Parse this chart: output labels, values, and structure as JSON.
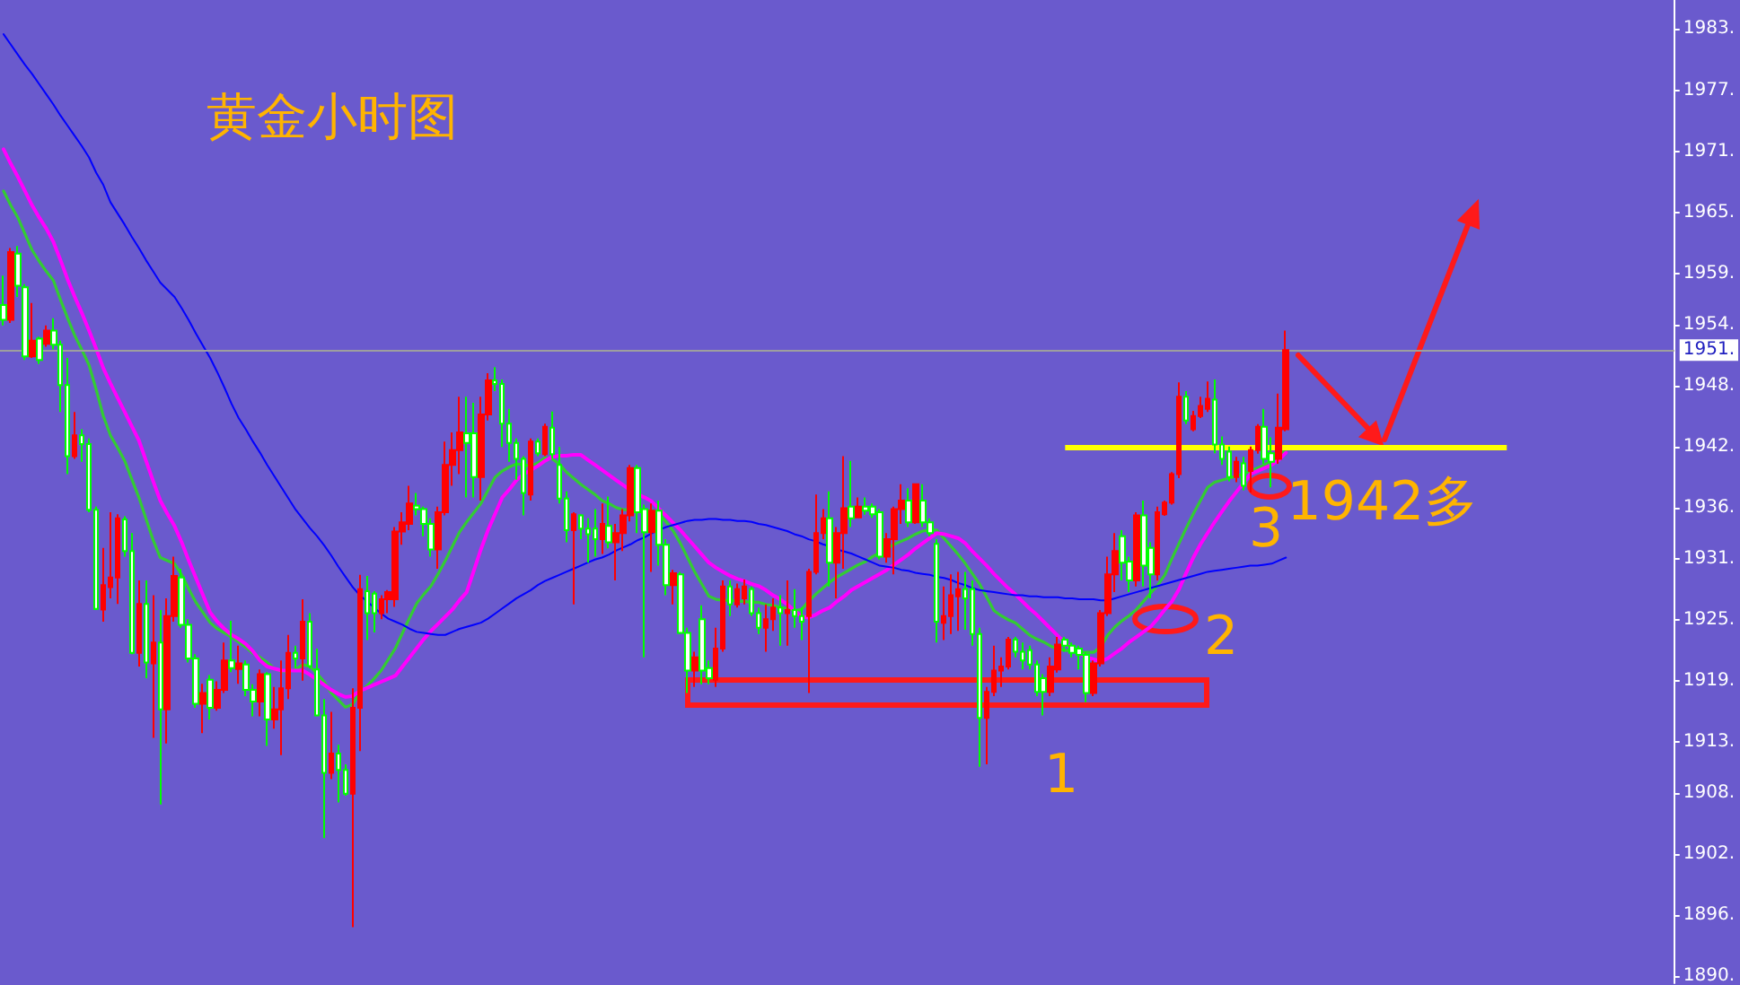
{
  "chart_data": {
    "type": "candlestick",
    "title": "黄金小时图",
    "categories": [
      null,
      null,
      null,
      null,
      null,
      null,
      null,
      null,
      null,
      null,
      null,
      null,
      null,
      null,
      null,
      null,
      null,
      null,
      null,
      null,
      null,
      null,
      null,
      null,
      null,
      null,
      null,
      null,
      null,
      null,
      null,
      null,
      null,
      null,
      null,
      null,
      null,
      null,
      null,
      null,
      null,
      null,
      null,
      null,
      null,
      null,
      null,
      null,
      null,
      null,
      null,
      null,
      null,
      null,
      null,
      null,
      null,
      null,
      null,
      null,
      null,
      null,
      null,
      null,
      null,
      null,
      null,
      null,
      null,
      null,
      null,
      null,
      null,
      null,
      null,
      null,
      null,
      null,
      null,
      null,
      null,
      null,
      null,
      null,
      null,
      null,
      null,
      null,
      null,
      null,
      null,
      null,
      null,
      null,
      null,
      null,
      null,
      null,
      null,
      null,
      null,
      null,
      null,
      null,
      null,
      null,
      null,
      null,
      null,
      null,
      null,
      null,
      null,
      null,
      null,
      null,
      null,
      null,
      null,
      null,
      null,
      null,
      null,
      null,
      null,
      null,
      null,
      null,
      null,
      null,
      null,
      null,
      null,
      null,
      null,
      null,
      null,
      null,
      null,
      null,
      null,
      null,
      null,
      null,
      null,
      null,
      null,
      null,
      null,
      null,
      null,
      null,
      null,
      null,
      null,
      null,
      null,
      null,
      null,
      null,
      null,
      null,
      null,
      null,
      null,
      null,
      null,
      null,
      null,
      null,
      null,
      null,
      null,
      null,
      null,
      null,
      null,
      null,
      null,
      null,
      null,
      null,
      null,
      null,
      null,
      null,
      null,
      null,
      null,
      null,
      null,
      null,
      null,
      null,
      null,
      null,
      null,
      null,
      null,
      null,
      null,
      null,
      null,
      null,
      null,
      null,
      null,
      null,
      null,
      null,
      null,
      null,
      null,
      null,
      null,
      null,
      null,
      null,
      null,
      null,
      null,
      null,
      null,
      null,
      null,
      null,
      null,
      null,
      null,
      null,
      null,
      null,
      null,
      null,
      null
    ],
    "ohlc": [
      [
        1955.9,
        1958.8,
        1953.9,
        1954.45
      ],
      [
        1954.45,
        1961.5,
        1954.15,
        1961.1
      ],
      [
        1960.95,
        1961.7,
        1956.7,
        1957.8
      ],
      [
        1957.65,
        1957.95,
        1950.5,
        1950.85
      ],
      [
        1950.85,
        1956.1,
        1950.7,
        1952.4
      ],
      [
        1952.6,
        1952.8,
        1950.1,
        1950.5
      ],
      [
        1952.1,
        1953.9,
        1951.8,
        1953.4
      ],
      [
        1953.4,
        1954.6,
        1951.55,
        1952.0
      ],
      [
        1952.0,
        1952.4,
        1945.4,
        1948.05
      ],
      [
        1948.05,
        1950.7,
        1939.3,
        1941.05
      ],
      [
        1941.05,
        1945.4,
        1940.8,
        1943.1
      ],
      [
        1943.1,
        1943.7,
        1940.5,
        1942.25
      ],
      [
        1942.25,
        1942.8,
        1935.55,
        1935.8
      ],
      [
        1935.8,
        1936.1,
        1925.95,
        1926.05
      ],
      [
        1926.0,
        1932.05,
        1924.8,
        1928.4
      ],
      [
        1928.2,
        1935.55,
        1927.1,
        1929.15
      ],
      [
        1929.15,
        1935.35,
        1926.55,
        1934.95
      ],
      [
        1934.85,
        1935.15,
        1931.2,
        1931.75
      ],
      [
        1931.75,
        1933.5,
        1921.6,
        1921.75
      ],
      [
        1921.75,
        1928.85,
        1920.4,
        1926.55
      ],
      [
        1926.55,
        1928.85,
        1919.25,
        1920.8
      ],
      [
        1920.7,
        1927.4,
        1913.4,
        1922.75
      ],
      [
        1922.75,
        1925.95,
        1906.85,
        1916.2
      ],
      [
        1916.2,
        1927.1,
        1912.85,
        1925.35
      ],
      [
        1925.35,
        1931.2,
        1924.8,
        1929.3
      ],
      [
        1929.15,
        1930.0,
        1924.2,
        1924.5
      ],
      [
        1924.5,
        1925.05,
        1920.8,
        1921.2
      ],
      [
        1921.2,
        1921.6,
        1916.35,
        1916.75
      ],
      [
        1916.75,
        1918.7,
        1913.85,
        1917.8
      ],
      [
        1919.1,
        1919.55,
        1915.2,
        1916.35
      ],
      [
        1916.35,
        1918.95,
        1916.05,
        1918.1
      ],
      [
        1918.1,
        1922.75,
        1917.8,
        1921.0
      ],
      [
        1921.0,
        1924.9,
        1919.85,
        1920.25
      ],
      [
        1920.15,
        1922.45,
        1918.7,
        1920.7
      ],
      [
        1920.6,
        1921.0,
        1917.5,
        1918.1
      ],
      [
        1918.1,
        1918.65,
        1915.5,
        1916.95
      ],
      [
        1916.95,
        1920.1,
        1915.5,
        1919.65
      ],
      [
        1919.65,
        1919.85,
        1912.6,
        1915.2
      ],
      [
        1915.2,
        1918.4,
        1914.3,
        1916.2
      ],
      [
        1916.2,
        1921.0,
        1911.7,
        1918.25
      ],
      [
        1918.25,
        1923.5,
        1917.2,
        1921.75
      ],
      [
        1921.75,
        1922.45,
        1920.25,
        1921.2
      ],
      [
        1921.2,
        1927.0,
        1919.0,
        1924.8
      ],
      [
        1924.8,
        1925.65,
        1920.2,
        1920.45
      ],
      [
        1920.1,
        1922.15,
        1915.5,
        1915.6
      ],
      [
        1915.6,
        1917.2,
        1903.55,
        1909.95
      ],
      [
        1909.95,
        1915.95,
        1909.35,
        1911.85
      ],
      [
        1911.85,
        1912.7,
        1907.05,
        1910.25
      ],
      [
        1910.25,
        1910.8,
        1907.7,
        1907.9
      ],
      [
        1907.9,
        1918.25,
        1894.8,
        1916.35
      ],
      [
        1916.35,
        1929.4,
        1912.1,
        1928.0
      ],
      [
        1927.8,
        1929.3,
        1923.0,
        1925.65
      ],
      [
        1927.55,
        1927.8,
        1923.75,
        1925.65
      ],
      [
        1925.65,
        1927.4,
        1925.05,
        1927.0
      ],
      [
        1927.0,
        1927.9,
        1925.65,
        1927.7
      ],
      [
        1927.0,
        1934.1,
        1926.25,
        1933.65
      ],
      [
        1933.65,
        1935.55,
        1932.35,
        1934.55
      ],
      [
        1934.4,
        1938.15,
        1933.8,
        1936.4
      ],
      [
        1936.2,
        1937.45,
        1935.25,
        1935.85
      ],
      [
        1935.85,
        1936.1,
        1933.2,
        1934.4
      ],
      [
        1934.4,
        1934.95,
        1931.2,
        1931.9
      ],
      [
        1931.9,
        1936.1,
        1930.0,
        1935.55
      ],
      [
        1935.55,
        1942.5,
        1935.25,
        1940.2
      ],
      [
        1940.2,
        1943.4,
        1938.15,
        1941.65
      ],
      [
        1941.65,
        1946.9,
        1939.3,
        1943.4
      ],
      [
        1943.3,
        1946.9,
        1937.0,
        1942.35
      ],
      [
        1943.3,
        1946.3,
        1937.0,
        1939.0
      ],
      [
        1939.0,
        1946.9,
        1936.7,
        1945.15
      ],
      [
        1945.15,
        1949.2,
        1944.55,
        1948.5
      ],
      [
        1948.5,
        1949.8,
        1947.45,
        1948.15
      ],
      [
        1948.15,
        1948.6,
        1941.95,
        1944.25
      ],
      [
        1944.25,
        1945.7,
        1940.5,
        1942.35
      ],
      [
        1942.35,
        1942.8,
        1938.75,
        1940.8
      ],
      [
        1940.8,
        1941.05,
        1935.25,
        1937.45
      ],
      [
        1937.3,
        1942.8,
        1936.7,
        1942.5
      ],
      [
        1942.5,
        1942.8,
        1941.05,
        1941.35
      ],
      [
        1941.25,
        1944.25,
        1941.05,
        1943.95
      ],
      [
        1943.85,
        1945.45,
        1940.8,
        1941.25
      ],
      [
        1940.2,
        1941.95,
        1936.4,
        1936.9
      ],
      [
        1936.9,
        1937.6,
        1932.6,
        1933.8
      ],
      [
        1933.8,
        1935.55,
        1926.5,
        1935.35
      ],
      [
        1935.25,
        1935.35,
        1932.9,
        1933.95
      ],
      [
        1933.95,
        1934.95,
        1930.6,
        1933.4
      ],
      [
        1933.95,
        1935.85,
        1931.2,
        1932.9
      ],
      [
        1932.9,
        1936.4,
        1931.45,
        1934.4
      ],
      [
        1934.2,
        1937.1,
        1932.0,
        1932.6
      ],
      [
        1932.6,
        1934.4,
        1928.85,
        1933.5
      ],
      [
        1933.5,
        1935.85,
        1931.75,
        1935.25
      ],
      [
        1935.25,
        1940.2,
        1934.65,
        1939.9
      ],
      [
        1939.9,
        1940.2,
        1933.5,
        1935.55
      ],
      [
        1935.85,
        1936.3,
        1921.3,
        1933.6
      ],
      [
        1933.6,
        1936.4,
        1929.7,
        1935.7
      ],
      [
        1935.7,
        1936.7,
        1930.3,
        1932.35
      ],
      [
        1932.35,
        1932.9,
        1927.4,
        1928.4
      ],
      [
        1928.4,
        1929.9,
        1926.5,
        1929.55
      ],
      [
        1929.45,
        1929.7,
        1923.6,
        1923.7
      ],
      [
        1923.7,
        1924.2,
        1917.8,
        1920.0
      ],
      [
        1920.0,
        1921.85,
        1918.4,
        1921.3
      ],
      [
        1925.05,
        1926.4,
        1918.65,
        1920.0
      ],
      [
        1920.25,
        1921.0,
        1918.65,
        1919.25
      ],
      [
        1919.1,
        1924.2,
        1918.4,
        1922.15
      ],
      [
        1922.15,
        1928.85,
        1921.85,
        1928.25
      ],
      [
        1928.25,
        1928.85,
        1925.35,
        1926.5
      ],
      [
        1926.5,
        1928.55,
        1926.2,
        1928.0
      ],
      [
        1927.1,
        1928.95,
        1926.5,
        1928.25
      ],
      [
        1928.0,
        1928.25,
        1925.35,
        1925.65
      ],
      [
        1925.65,
        1926.2,
        1923.6,
        1924.2
      ],
      [
        1924.2,
        1926.5,
        1921.85,
        1925.05
      ],
      [
        1925.05,
        1927.1,
        1923.9,
        1926.2
      ],
      [
        1926.2,
        1927.4,
        1922.45,
        1925.65
      ],
      [
        1925.65,
        1928.85,
        1922.45,
        1925.95
      ],
      [
        1925.95,
        1928.0,
        1924.2,
        1925.35
      ],
      [
        1925.35,
        1926.2,
        1923.0,
        1924.8
      ],
      [
        1925.35,
        1930.0,
        1917.8,
        1929.7
      ],
      [
        1929.7,
        1937.3,
        1929.45,
        1933.5
      ],
      [
        1933.5,
        1935.85,
        1932.9,
        1934.95
      ],
      [
        1934.95,
        1937.6,
        1928.25,
        1930.6
      ],
      [
        1930.6,
        1934.1,
        1927.1,
        1933.5
      ],
      [
        1933.5,
        1941.05,
        1930.0,
        1935.95
      ],
      [
        1936.1,
        1940.6,
        1934.1,
        1934.95
      ],
      [
        1935.05,
        1937.0,
        1935.0,
        1936.1
      ],
      [
        1936.1,
        1937.0,
        1935.3,
        1935.7
      ],
      [
        1936.1,
        1936.4,
        1935.0,
        1935.35
      ],
      [
        1935.55,
        1935.85,
        1930.9,
        1931.2
      ],
      [
        1931.2,
        1933.5,
        1930.6,
        1932.9
      ],
      [
        1932.9,
        1936.1,
        1929.45,
        1935.85
      ],
      [
        1935.85,
        1938.3,
        1934.4,
        1936.7
      ],
      [
        1936.7,
        1937.9,
        1934.1,
        1934.55
      ],
      [
        1934.55,
        1938.3,
        1934.4,
        1938.3
      ],
      [
        1936.7,
        1938.3,
        1934.1,
        1934.55
      ],
      [
        1934.55,
        1934.95,
        1933.2,
        1933.5
      ],
      [
        1932.45,
        1932.9,
        1922.75,
        1924.8
      ],
      [
        1924.7,
        1928.25,
        1923.0,
        1925.35
      ],
      [
        1925.35,
        1929.45,
        1923.6,
        1927.4
      ],
      [
        1927.3,
        1929.7,
        1923.9,
        1928.0
      ],
      [
        1928.0,
        1929.7,
        1924.0,
        1927.1
      ],
      [
        1928.0,
        1928.85,
        1922.45,
        1923.6
      ],
      [
        1923.6,
        1924.2,
        1910.55,
        1915.35
      ],
      [
        1915.35,
        1918.4,
        1910.8,
        1917.9
      ],
      [
        1917.9,
        1922.45,
        1917.5,
        1920.0
      ],
      [
        1920.0,
        1921.3,
        1918.4,
        1920.4
      ],
      [
        1920.4,
        1923.3,
        1920.1,
        1923.05
      ],
      [
        1923.05,
        1923.3,
        1921.3,
        1921.85
      ],
      [
        1921.85,
        1922.75,
        1920.1,
        1921.0
      ],
      [
        1922.0,
        1922.45,
        1920.1,
        1920.6
      ],
      [
        1920.6,
        1921.0,
        1917.5,
        1917.9
      ],
      [
        1919.25,
        1919.65,
        1915.6,
        1917.9
      ],
      [
        1917.9,
        1921.3,
        1917.5,
        1920.4
      ],
      [
        1920.1,
        1923.3,
        1919.8,
        1922.55
      ],
      [
        1923.05,
        1923.3,
        1921.85,
        1922.45
      ],
      [
        1922.45,
        1922.75,
        1921.3,
        1921.75
      ],
      [
        1922.15,
        1922.45,
        1920.1,
        1921.55
      ],
      [
        1921.55,
        1921.85,
        1916.9,
        1917.8
      ],
      [
        1917.8,
        1921.0,
        1917.5,
        1920.7
      ],
      [
        1920.7,
        1925.95,
        1920.4,
        1925.65
      ],
      [
        1925.65,
        1931.2,
        1925.35,
        1929.45
      ],
      [
        1929.45,
        1933.5,
        1927.7,
        1931.75
      ],
      [
        1933.2,
        1933.8,
        1928.85,
        1930.6
      ],
      [
        1930.7,
        1931.2,
        1927.7,
        1928.85
      ],
      [
        1928.85,
        1935.55,
        1928.25,
        1935.25
      ],
      [
        1935.25,
        1936.7,
        1928.25,
        1930.3
      ],
      [
        1932.05,
        1932.6,
        1927.1,
        1929.45
      ],
      [
        1929.45,
        1936.1,
        1928.85,
        1935.55
      ],
      [
        1935.35,
        1936.7,
        1935.2,
        1936.5
      ],
      [
        1936.5,
        1939.5,
        1936.3,
        1939.3
      ],
      [
        1939.3,
        1948.3,
        1938.9,
        1946.9
      ],
      [
        1946.9,
        1947.45,
        1944.2,
        1944.55
      ],
      [
        1943.7,
        1945.5,
        1943.5,
        1945.0
      ],
      [
        1945.0,
        1946.9,
        1944.8,
        1946.0
      ],
      [
        1945.7,
        1948.4,
        1945.4,
        1946.7
      ],
      [
        1946.6,
        1948.6,
        1941.35,
        1942.2
      ],
      [
        1942.2,
        1943.0,
        1940.2,
        1940.8
      ],
      [
        1941.5,
        1942.0,
        1938.6,
        1939.0
      ],
      [
        1939.0,
        1941.0,
        1938.5,
        1940.5
      ],
      [
        1940.35,
        1941.0,
        1937.7,
        1938.15
      ],
      [
        1939.6,
        1942.0,
        1937.5,
        1941.65
      ],
      [
        1941.65,
        1944.2,
        1941.3,
        1943.95
      ],
      [
        1943.95,
        1945.7,
        1940.3,
        1940.8
      ],
      [
        1941.35,
        1942.9,
        1938.0,
        1940.5
      ],
      [
        1940.8,
        1947.2,
        1940.3,
        1943.85
      ],
      [
        1943.7,
        1953.4,
        1943.5,
        1951.48
      ],
      null,
      null,
      null,
      null,
      null,
      null,
      null,
      null,
      null,
      null,
      null,
      null,
      null,
      null,
      null,
      null,
      null,
      null,
      null,
      null,
      null,
      null,
      null,
      null,
      null,
      null,
      null,
      null,
      null,
      null,
      null,
      null,
      null,
      null,
      null,
      null,
      null,
      null,
      null,
      null,
      null,
      null,
      null,
      null,
      null,
      null,
      null,
      null,
      null,
      null,
      null,
      null,
      null,
      null
    ],
    "colors": [
      "#00ff00",
      "#ff0000",
      "#00ff00",
      "#00ff00",
      "#ff0000",
      "#00ff00",
      "#ff0000",
      "#00ff00",
      "#00ff00",
      "#00ff00",
      "#ff0000",
      "#00ff00",
      "#00ff00",
      "#00ff00",
      "#ff0000",
      "#ff0000",
      "#ff0000",
      "#00ff00",
      "#00ff00",
      "#ff0000",
      "#00ff00",
      "#ff0000",
      "#00ff00",
      "#ff0000",
      "#ff0000",
      "#00ff00",
      "#00ff00",
      "#00ff00",
      "#ff0000",
      "#00ff00",
      "#ff0000",
      "#ff0000",
      "#00ff00",
      "#ff0000",
      "#00ff00",
      "#00ff00",
      "#ff0000",
      "#00ff00",
      "#ff0000",
      "#ff0000",
      "#ff0000",
      "#00ff00",
      "#ff0000",
      "#00ff00",
      "#00ff00",
      "#00ff00",
      "#ff0000",
      "#00ff00",
      "#00ff00",
      "#ff0000",
      "#ff0000",
      "#00ff00",
      "#00ff00",
      "#ff0000",
      "#ff0000",
      "#ff0000",
      "#ff0000",
      "#ff0000",
      "#00ff00",
      "#00ff00",
      "#00ff00",
      "#ff0000",
      "#ff0000",
      "#ff0000",
      "#ff0000",
      "#00ff00",
      "#00ff00",
      "#ff0000",
      "#ff0000",
      "#00ff00",
      "#00ff00",
      "#00ff00",
      "#00ff00",
      "#00ff00",
      "#ff0000",
      "#00ff00",
      "#ff0000",
      "#00ff00",
      "#00ff00",
      "#00ff00",
      "#ff0000",
      "#00ff00",
      "#00ff00",
      "#00ff00",
      "#ff0000",
      "#00ff00",
      "#ff0000",
      "#ff0000",
      "#ff0000",
      "#00ff00",
      "#00ff00",
      "#ff0000",
      "#00ff00",
      "#00ff00",
      "#ff0000",
      "#00ff00",
      "#00ff00",
      "#ff0000",
      "#00ff00",
      "#00ff00",
      "#ff0000",
      "#ff0000",
      "#00ff00",
      "#ff0000",
      "#ff0000",
      "#00ff00",
      "#00ff00",
      "#ff0000",
      "#ff0000",
      "#00ff00",
      "#ff0000",
      "#00ff00",
      "#00ff00",
      "#ff0000",
      "#ff0000",
      "#ff0000",
      "#00ff00",
      "#ff0000",
      "#ff0000",
      "#00ff00",
      "#ff0000",
      "#00ff00",
      "#00ff00",
      "#00ff00",
      "#ff0000",
      "#ff0000",
      "#ff0000",
      "#00ff00",
      "#ff0000",
      "#00ff00",
      "#00ff00",
      "#00ff00",
      "#ff0000",
      "#ff0000",
      "#ff0000",
      "#00ff00",
      "#00ff00",
      "#00ff00",
      "#ff0000",
      "#ff0000",
      "#ff0000",
      "#ff0000",
      "#00ff00",
      "#00ff00",
      "#00ff00",
      "#00ff00",
      "#00ff00",
      "#ff0000",
      "#ff0000",
      "#00ff00",
      "#00ff00",
      "#00ff00",
      "#00ff00",
      "#ff0000",
      "#ff0000",
      "#ff0000",
      "#ff0000",
      "#00ff00",
      "#00ff00",
      "#ff0000",
      "#00ff00",
      "#00ff00",
      "#ff0000",
      "#ff0000",
      "#ff0000",
      "#ff0000",
      "#00ff00",
      "#ff0000",
      "#ff0000",
      "#ff0000",
      "#00ff00",
      "#00ff00",
      "#00ff00",
      "#ff0000",
      "#00ff00",
      "#ff0000",
      "#ff0000",
      "#00ff00",
      "#00ff00",
      "#ff0000",
      "#ff0000",
      null,
      null,
      null,
      null,
      null,
      null,
      null,
      null,
      null,
      null,
      null,
      null,
      null,
      null,
      null,
      null,
      null,
      null,
      null,
      null,
      null,
      null,
      null,
      null,
      null,
      null,
      null,
      null,
      null,
      null,
      null,
      null,
      null,
      null,
      null,
      null,
      null,
      null,
      null,
      null,
      null,
      null,
      null,
      null,
      null,
      null,
      null,
      null,
      null,
      null,
      null,
      null,
      null,
      null
    ],
    "series": [
      {
        "type": "line",
        "color": "#33cc33",
        "values": [
          1967.1,
          1965.7,
          1964.5,
          1962.9,
          1961.3,
          1960.2,
          1959.2,
          1958.3,
          1956.4,
          1954.6,
          1952.9,
          1951.5,
          1950.0,
          1947.6,
          1945.0,
          1943.1,
          1941.9,
          1940.6,
          1938.8,
          1937.0,
          1934.9,
          1932.8,
          1931.1,
          1930.8,
          1930.5,
          1929.4,
          1928.0,
          1926.7,
          1925.7,
          1924.7,
          1924.1,
          1923.7,
          1923.3,
          1922.8,
          1922.3,
          1921.7,
          1921.3,
          1920.8,
          1920.2,
          1919.9,
          1919.9,
          1920.1,
          1920.6,
          1920.4,
          1919.7,
          1918.9,
          1917.8,
          1917.1,
          1916.4,
          1916.7,
          1917.8,
          1918.5,
          1919.2,
          1920.0,
          1921.1,
          1922.2,
          1923.7,
          1925.2,
          1926.6,
          1927.5,
          1928.3,
          1929.5,
          1930.8,
          1932.2,
          1933.6,
          1934.6,
          1935.5,
          1936.4,
          1937.7,
          1939.0,
          1939.6,
          1940.0,
          1940.3,
          1940.2,
          1940.1,
          1940.4,
          1940.9,
          1940.8,
          1940.3,
          1939.5,
          1938.9,
          1938.3,
          1937.8,
          1937.3,
          1936.7,
          1936.4,
          1936.0,
          1935.8,
          1935.8,
          1935.8,
          1935.7,
          1935.7,
          1935.4,
          1934.6,
          1933.7,
          1932.5,
          1931.1,
          1929.7,
          1928.5,
          1927.3,
          1927.0,
          1926.9,
          1926.9,
          1926.8,
          1926.8,
          1926.7,
          1926.7,
          1926.5,
          1926.4,
          1926.2,
          1926.1,
          1925.9,
          1926.0,
          1926.8,
          1927.5,
          1928.1,
          1928.7,
          1929.2,
          1929.6,
          1930.0,
          1930.4,
          1930.7,
          1931.2,
          1931.6,
          1932.0,
          1932.4,
          1932.7,
          1933.0,
          1933.4,
          1933.7,
          1933.8,
          1933.8,
          1933.0,
          1932.2,
          1931.4,
          1930.5,
          1929.5,
          1928.5,
          1927.2,
          1925.9,
          1925.4,
          1925.0,
          1924.7,
          1924.1,
          1923.5,
          1923.1,
          1922.8,
          1922.4,
          1922.1,
          1922.0,
          1921.9,
          1921.8,
          1921.8,
          1921.8,
          1922.3,
          1923.5,
          1924.3,
          1924.9,
          1925.4,
          1926.0,
          1926.8,
          1927.6,
          1928.4,
          1929.4,
          1931.0,
          1932.5,
          1934.0,
          1935.4,
          1936.7,
          1938.0,
          1938.5,
          1938.7,
          1938.9,
          1939.1,
          1939.3,
          1939.6,
          1939.9,
          1940.2,
          1940.6,
          1941.1,
          1941.7,
          null,
          null,
          null,
          null,
          null,
          null,
          null,
          null,
          null,
          null,
          null,
          null,
          null,
          null,
          null,
          null,
          null,
          null,
          null,
          null,
          null,
          null,
          null,
          null,
          null,
          null,
          null,
          null,
          null,
          null,
          null,
          null,
          null,
          null,
          null,
          null,
          null,
          null,
          null,
          null,
          null,
          null,
          null,
          null,
          null,
          null,
          null,
          null,
          null,
          null,
          null,
          null,
          null,
          null
        ]
      },
      {
        "type": "line",
        "color": "#ff00ff",
        "values": [
          1971.2,
          1969.8,
          1968.5,
          1967.1,
          1965.7,
          1964.5,
          1963.4,
          1962.1,
          1960.3,
          1958.4,
          1956.7,
          1955.1,
          1953.4,
          1951.6,
          1949.7,
          1948.2,
          1946.8,
          1945.4,
          1944.0,
          1942.6,
          1940.6,
          1938.6,
          1936.7,
          1935.4,
          1934.2,
          1932.6,
          1930.8,
          1929.1,
          1927.4,
          1925.7,
          1924.8,
          1924.1,
          1923.5,
          1923.1,
          1922.6,
          1921.9,
          1921.0,
          1920.4,
          1920.2,
          1920.0,
          1920.0,
          1920.0,
          1920.0,
          1919.6,
          1919.1,
          1918.6,
          1918.1,
          1917.7,
          1917.4,
          1917.5,
          1918.0,
          1918.3,
          1918.6,
          1918.9,
          1919.2,
          1919.5,
          1920.4,
          1921.3,
          1922.2,
          1923.1,
          1923.9,
          1924.6,
          1925.3,
          1926.0,
          1926.9,
          1927.7,
          1929.8,
          1931.9,
          1933.8,
          1935.4,
          1937.0,
          1937.8,
          1938.7,
          1939.3,
          1939.7,
          1940.1,
          1940.6,
          1941.0,
          1941.1,
          1941.1,
          1941.2,
          1941.2,
          1940.7,
          1940.2,
          1939.7,
          1939.2,
          1938.7,
          1938.2,
          1937.7,
          1937.3,
          1937.0,
          1936.6,
          1935.9,
          1935.2,
          1934.5,
          1933.8,
          1933.0,
          1932.2,
          1931.4,
          1930.6,
          1930.1,
          1929.7,
          1929.3,
          1929.0,
          1928.8,
          1928.5,
          1928.3,
          1927.9,
          1927.4,
          1927.0,
          1926.5,
          1925.9,
          1925.3,
          1925.2,
          1925.5,
          1925.9,
          1926.2,
          1926.8,
          1927.3,
          1927.9,
          1928.3,
          1928.7,
          1929.1,
          1929.5,
          1929.9,
          1930.4,
          1930.9,
          1931.4,
          1932.0,
          1932.5,
          1933.0,
          1933.5,
          1933.4,
          1933.2,
          1933.0,
          1932.5,
          1931.7,
          1931.0,
          1930.3,
          1929.5,
          1928.8,
          1928.1,
          1927.5,
          1926.8,
          1926.1,
          1925.5,
          1924.8,
          1924.1,
          1923.4,
          1922.7,
          1922.2,
          1921.7,
          1921.3,
          1921.1,
          1920.9,
          1921.2,
          1921.7,
          1922.2,
          1922.8,
          1923.3,
          1923.8,
          1924.3,
          1925.1,
          1926.0,
          1926.8,
          1928.0,
          1929.6,
          1931.1,
          1932.4,
          1933.5,
          1934.6,
          1935.6,
          1936.6,
          1937.5,
          1938.4,
          1939.3,
          1939.6,
          1939.9,
          1940.2,
          1940.7,
          1941.4,
          null,
          null,
          null,
          null,
          null,
          null,
          null,
          null,
          null,
          null,
          null,
          null,
          null,
          null,
          null,
          null,
          null,
          null,
          null,
          null,
          null,
          null,
          null,
          null,
          null,
          null,
          null,
          null,
          null,
          null,
          null,
          null,
          null,
          null,
          null,
          null,
          null,
          null,
          null,
          null,
          null,
          null,
          null,
          null,
          null,
          null,
          null,
          null,
          null,
          null,
          null,
          null,
          null,
          null
        ]
      },
      {
        "type": "line",
        "color": "#0000ff",
        "values": [
          1982.5,
          1981.5,
          1980.5,
          1979.5,
          1978.6,
          1977.6,
          1976.6,
          1975.6,
          1974.5,
          1973.5,
          1972.5,
          1971.5,
          1970.4,
          1968.9,
          1967.7,
          1966.0,
          1964.9,
          1963.8,
          1962.6,
          1961.5,
          1960.3,
          1959.2,
          1958.1,
          1957.4,
          1956.7,
          1955.6,
          1954.4,
          1953.1,
          1951.9,
          1950.7,
          1949.3,
          1947.8,
          1946.2,
          1944.8,
          1943.7,
          1942.5,
          1941.4,
          1940.2,
          1939.1,
          1938.0,
          1936.9,
          1935.8,
          1934.9,
          1934.0,
          1933.2,
          1932.3,
          1931.3,
          1930.2,
          1929.2,
          1928.2,
          1927.4,
          1926.8,
          1926.2,
          1925.6,
          1925.1,
          1924.8,
          1924.5,
          1924.1,
          1923.8,
          1923.7,
          1923.6,
          1923.5,
          1923.5,
          1923.8,
          1924.1,
          1924.3,
          1924.5,
          1924.7,
          1925.1,
          1925.6,
          1926.1,
          1926.6,
          1927.1,
          1927.5,
          1927.9,
          1928.4,
          1928.8,
          1929.1,
          1929.4,
          1929.7,
          1930.0,
          1930.3,
          1930.6,
          1930.9,
          1931.1,
          1931.4,
          1931.8,
          1932.1,
          1932.4,
          1932.8,
          1933.1,
          1933.5,
          1933.8,
          1934.1,
          1934.3,
          1934.5,
          1934.7,
          1934.8,
          1934.8,
          1934.9,
          1934.9,
          1934.8,
          1934.8,
          1934.7,
          1934.7,
          1934.6,
          1934.4,
          1934.3,
          1934.1,
          1933.9,
          1933.7,
          1933.4,
          1933.2,
          1932.9,
          1932.7,
          1932.4,
          1932.2,
          1931.9,
          1931.7,
          1931.5,
          1931.2,
          1930.9,
          1930.6,
          1930.3,
          1930.2,
          1930.1,
          1929.9,
          1929.8,
          1929.6,
          1929.5,
          1929.4,
          1929.2,
          1929.1,
          1928.9,
          1928.6,
          1928.4,
          1928.1,
          1927.9,
          1927.8,
          1927.7,
          1927.6,
          1927.5,
          1927.4,
          1927.4,
          1927.3,
          1927.3,
          1927.2,
          1927.2,
          1927.2,
          1927.1,
          1927.1,
          1927.0,
          1927.0,
          1927.0,
          1926.9,
          1926.9,
          1927.1,
          1927.3,
          1927.5,
          1927.7,
          1927.9,
          1928.1,
          1928.3,
          1928.5,
          1928.7,
          1928.9,
          1929.1,
          1929.3,
          1929.5,
          1929.7,
          1929.8,
          1929.9,
          1930.0,
          1930.1,
          1930.2,
          1930.3,
          1930.3,
          1930.4,
          1930.5,
          1930.8,
          1931.1,
          null,
          null,
          null,
          null,
          null,
          null,
          null,
          null,
          null,
          null,
          null,
          null,
          null,
          null,
          null,
          null,
          null,
          null,
          null,
          null,
          null,
          null,
          null,
          null,
          null,
          null,
          null,
          null,
          null,
          null,
          null,
          null,
          null,
          null,
          null,
          null,
          null,
          null,
          null,
          null,
          null,
          null,
          null,
          null,
          null,
          null,
          null,
          null,
          null,
          null,
          null,
          null,
          null,
          null
        ]
      }
    ],
    "ylim": [
      1889.3,
      1985.86
    ],
    "yticks": [
      {
        "value": 1890,
        "label": "1890."
      },
      {
        "value": 1896,
        "label": "1896."
      },
      {
        "value": 1902,
        "label": "1902."
      },
      {
        "value": 1908,
        "label": "1908."
      },
      {
        "value": 1913,
        "label": "1913."
      },
      {
        "value": 1919,
        "label": "1919."
      },
      {
        "value": 1925,
        "label": "1925."
      },
      {
        "value": 1931,
        "label": "1931."
      },
      {
        "value": 1936,
        "label": "1936."
      },
      {
        "value": 1942,
        "label": "1942."
      },
      {
        "value": 1948,
        "label": "1948."
      },
      {
        "value": 1954,
        "label": "1954."
      },
      {
        "value": 1959,
        "label": "1959."
      },
      {
        "value": 1965,
        "label": "1965."
      },
      {
        "value": 1971,
        "label": "1971."
      },
      {
        "value": 1977,
        "label": "1977."
      },
      {
        "value": 1983,
        "label": "1983."
      }
    ],
    "tick_labels": "y",
    "marker": "none",
    "ref_lines": [
      {
        "axis": "y",
        "value": 1951.48,
        "label": "1951.",
        "color": "#9e9e9e"
      },
      {
        "axis": "y",
        "value": 1942,
        "label": "1942多",
        "color": "#ffff00"
      }
    ],
    "annotations": [
      "1",
      "2",
      "3"
    ]
  }
}
